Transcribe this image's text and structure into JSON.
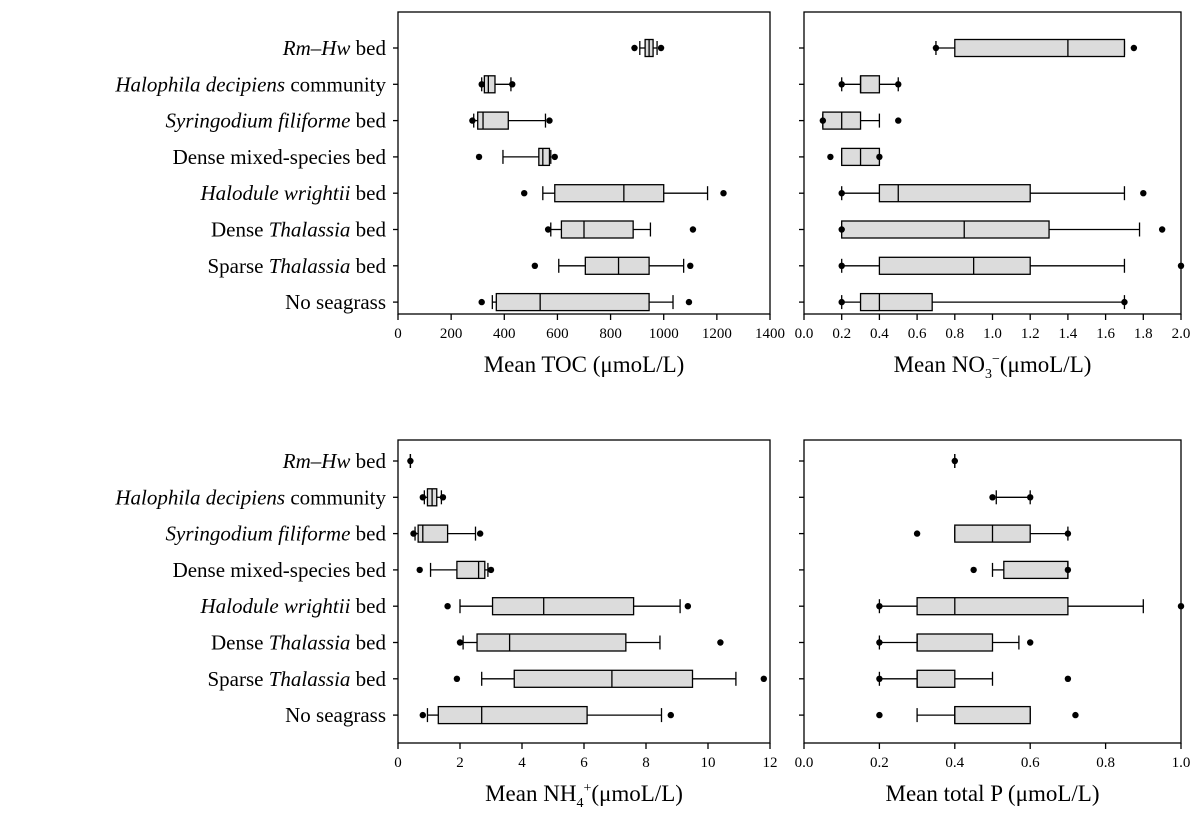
{
  "categories": [
    {
      "pre": "",
      "italic": "Rm–Hw",
      "post": " bed"
    },
    {
      "pre": "",
      "italic": "Halophila decipiens",
      "post": " community"
    },
    {
      "pre": "",
      "italic": "Syringodium filiforme",
      "post": " bed"
    },
    {
      "pre": "Dense mixed-species bed",
      "italic": "",
      "post": ""
    },
    {
      "pre": "",
      "italic": "Halodule wrightii",
      "post": " bed"
    },
    {
      "pre": "Dense ",
      "italic": "Thalassia",
      "post": " bed"
    },
    {
      "pre": "Sparse ",
      "italic": "Thalassia",
      "post": " bed"
    },
    {
      "pre": "No seagrass",
      "italic": "",
      "post": ""
    }
  ],
  "chart_data": [
    {
      "type": "box",
      "orientation": "horizontal",
      "xlabel": {
        "pre": "Mean TOC (",
        "mu": "μ",
        "post": "moL/L)",
        "sub": "",
        "sup": ""
      },
      "xlim": [
        0,
        1400
      ],
      "xticks": [
        "0",
        "200",
        "400",
        "600",
        "800",
        "1000",
        "1200",
        "1400"
      ],
      "xtick_values": [
        0,
        200,
        400,
        600,
        800,
        1000,
        1200,
        1400
      ],
      "boxes": [
        {
          "wmin": 910,
          "q1": 930,
          "median": 945,
          "q3": 960,
          "wmax": 975,
          "outliers": [
            890,
            990
          ]
        },
        {
          "wmin": 315,
          "q1": 325,
          "median": 340,
          "q3": 365,
          "wmax": 425,
          "outliers": [
            315,
            430
          ]
        },
        {
          "wmin": 285,
          "q1": 300,
          "median": 320,
          "q3": 415,
          "wmax": 555,
          "outliers": [
            280,
            570
          ]
        },
        {
          "wmin": 395,
          "q1": 530,
          "median": 545,
          "q3": 570,
          "wmax": 575,
          "outliers": [
            305,
            590
          ]
        },
        {
          "wmin": 545,
          "q1": 590,
          "median": 850,
          "q3": 1000,
          "wmax": 1165,
          "outliers": [
            475,
            1225
          ]
        },
        {
          "wmin": 575,
          "q1": 615,
          "median": 700,
          "q3": 885,
          "wmax": 950,
          "outliers": [
            565,
            1110
          ]
        },
        {
          "wmin": 605,
          "q1": 705,
          "median": 830,
          "q3": 945,
          "wmax": 1075,
          "outliers": [
            515,
            1100
          ]
        },
        {
          "wmin": 355,
          "q1": 370,
          "median": 535,
          "q3": 945,
          "wmax": 1035,
          "outliers": [
            315,
            1095
          ]
        }
      ]
    },
    {
      "type": "box",
      "orientation": "horizontal",
      "xlabel": {
        "pre": "Mean NO",
        "mu": "",
        "post": "(",
        "sub": "3",
        "sup": "−",
        "unit_mu": "μ",
        "unit_post": "moL/L)"
      },
      "xlim": [
        0,
        2.0
      ],
      "xticks": [
        "0.0",
        "0.2",
        "0.4",
        "0.6",
        "0.8",
        "1.0",
        "1.2",
        "1.4",
        "1.6",
        "1.8",
        "2.0"
      ],
      "xtick_values": [
        0,
        0.2,
        0.4,
        0.6,
        0.8,
        1.0,
        1.2,
        1.4,
        1.6,
        1.8,
        2.0
      ],
      "boxes": [
        {
          "wmin": 0.7,
          "q1": 0.8,
          "median": 1.4,
          "q3": 1.7,
          "wmax": 1.7,
          "outliers": [
            0.7,
            1.75
          ]
        },
        {
          "wmin": 0.2,
          "q1": 0.3,
          "median": 0.3,
          "q3": 0.4,
          "wmax": 0.5,
          "outliers": [
            0.2,
            0.5
          ]
        },
        {
          "wmin": 0.1,
          "q1": 0.1,
          "median": 0.2,
          "q3": 0.3,
          "wmax": 0.4,
          "outliers": [
            0.1,
            0.5
          ]
        },
        {
          "wmin": 0.2,
          "q1": 0.2,
          "median": 0.3,
          "q3": 0.4,
          "wmax": 0.4,
          "outliers": [
            0.14,
            0.4
          ]
        },
        {
          "wmin": 0.2,
          "q1": 0.4,
          "median": 0.5,
          "q3": 1.2,
          "wmax": 1.7,
          "outliers": [
            0.2,
            1.8
          ]
        },
        {
          "wmin": 0.2,
          "q1": 0.2,
          "median": 0.85,
          "q3": 1.3,
          "wmax": 1.78,
          "outliers": [
            0.2,
            1.9
          ]
        },
        {
          "wmin": 0.2,
          "q1": 0.4,
          "median": 0.9,
          "q3": 1.2,
          "wmax": 1.7,
          "outliers": [
            0.2,
            2.0
          ]
        },
        {
          "wmin": 0.2,
          "q1": 0.3,
          "median": 0.4,
          "q3": 0.68,
          "wmax": 1.7,
          "outliers": [
            0.2,
            1.7
          ]
        }
      ]
    },
    {
      "type": "box",
      "orientation": "horizontal",
      "xlabel": {
        "pre": "Mean NH",
        "mu": "",
        "post": "(",
        "sub": "4",
        "sup": "+",
        "unit_mu": "μ",
        "unit_post": "moL/L)"
      },
      "xlim": [
        0,
        12
      ],
      "xticks": [
        "0",
        "2",
        "4",
        "6",
        "8",
        "10",
        "12"
      ],
      "xtick_values": [
        0,
        2,
        4,
        6,
        8,
        10,
        12
      ],
      "boxes": [
        {
          "wmin": 0.4,
          "q1": 0.4,
          "median": 0.4,
          "q3": 0.4,
          "wmax": 0.4,
          "outliers": [
            0.4
          ]
        },
        {
          "wmin": 0.85,
          "q1": 0.95,
          "median": 1.1,
          "q3": 1.25,
          "wmax": 1.4,
          "outliers": [
            0.8,
            1.45
          ]
        },
        {
          "wmin": 0.55,
          "q1": 0.65,
          "median": 0.8,
          "q3": 1.6,
          "wmax": 2.5,
          "outliers": [
            0.5,
            2.65
          ]
        },
        {
          "wmin": 1.05,
          "q1": 1.9,
          "median": 2.6,
          "q3": 2.8,
          "wmax": 2.9,
          "outliers": [
            0.7,
            3.0
          ]
        },
        {
          "wmin": 2.0,
          "q1": 3.05,
          "median": 4.7,
          "q3": 7.6,
          "wmax": 9.1,
          "outliers": [
            1.6,
            9.35
          ]
        },
        {
          "wmin": 2.1,
          "q1": 2.55,
          "median": 3.6,
          "q3": 7.35,
          "wmax": 8.45,
          "outliers": [
            2.0,
            10.4
          ]
        },
        {
          "wmin": 2.7,
          "q1": 3.75,
          "median": 6.9,
          "q3": 9.5,
          "wmax": 10.9,
          "outliers": [
            1.9,
            11.8
          ]
        },
        {
          "wmin": 0.95,
          "q1": 1.3,
          "median": 2.7,
          "q3": 6.1,
          "wmax": 8.5,
          "outliers": [
            0.8,
            8.8
          ]
        }
      ]
    },
    {
      "type": "box",
      "orientation": "horizontal",
      "xlabel": {
        "pre": "Mean total P (",
        "mu": "μ",
        "post": "moL/L)",
        "sub": "",
        "sup": ""
      },
      "xlim": [
        0,
        1.0
      ],
      "xticks": [
        "0.0",
        "0.2",
        "0.4",
        "0.6",
        "0.8",
        "1.0"
      ],
      "xtick_values": [
        0,
        0.2,
        0.4,
        0.6,
        0.8,
        1.0
      ],
      "boxes": [
        {
          "wmin": 0.4,
          "q1": 0.4,
          "median": 0.4,
          "q3": 0.4,
          "wmax": 0.4,
          "outliers": [
            0.4
          ]
        },
        {
          "wmin": 0.51,
          "q1": 0.6,
          "median": 0.6,
          "q3": 0.6,
          "wmax": 0.6,
          "outliers": [
            0.5,
            0.6
          ]
        },
        {
          "wmin": 0.4,
          "q1": 0.4,
          "median": 0.5,
          "q3": 0.6,
          "wmax": 0.7,
          "outliers": [
            0.3,
            0.7
          ]
        },
        {
          "wmin": 0.5,
          "q1": 0.53,
          "median": 0.7,
          "q3": 0.7,
          "wmax": 0.7,
          "outliers": [
            0.45,
            0.7
          ]
        },
        {
          "wmin": 0.2,
          "q1": 0.3,
          "median": 0.4,
          "q3": 0.7,
          "wmax": 0.9,
          "outliers": [
            0.2,
            1.0
          ]
        },
        {
          "wmin": 0.2,
          "q1": 0.3,
          "median": 0.3,
          "q3": 0.5,
          "wmax": 0.57,
          "outliers": [
            0.2,
            0.6
          ]
        },
        {
          "wmin": 0.2,
          "q1": 0.3,
          "median": 0.3,
          "q3": 0.4,
          "wmax": 0.5,
          "outliers": [
            0.2,
            0.7
          ]
        },
        {
          "wmin": 0.3,
          "q1": 0.4,
          "median": 0.4,
          "q3": 0.6,
          "wmax": 0.6,
          "outliers": [
            0.2,
            0.72
          ]
        }
      ]
    }
  ]
}
